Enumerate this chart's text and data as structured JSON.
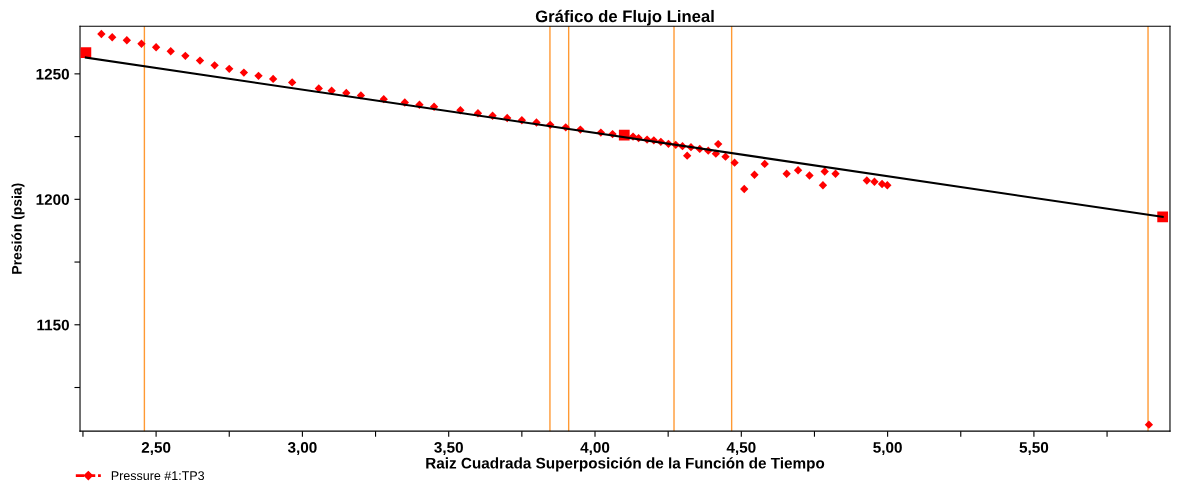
{
  "chart_data": {
    "type": "scatter",
    "title": "Gráfico de Flujo Lineal",
    "xlabel": "Raiz Cuadrada Superposición de la Función de Tiempo",
    "ylabel": "Presión (psia)",
    "xlim": [
      2.24,
      5.965
    ],
    "ylim": [
      1107.6,
      1269
    ],
    "xticks": [
      {
        "value": 2.25,
        "label": null
      },
      {
        "value": 2.5,
        "label": "2,50"
      },
      {
        "value": 2.75,
        "label": null
      },
      {
        "value": 3.0,
        "label": "3,00"
      },
      {
        "value": 3.25,
        "label": null
      },
      {
        "value": 3.5,
        "label": "3,50"
      },
      {
        "value": 3.75,
        "label": null
      },
      {
        "value": 4.0,
        "label": "4,00"
      },
      {
        "value": 4.25,
        "label": null
      },
      {
        "value": 4.5,
        "label": "4,50"
      },
      {
        "value": 4.75,
        "label": null
      },
      {
        "value": 5.0,
        "label": "5,00"
      },
      {
        "value": 5.25,
        "label": null
      },
      {
        "value": 5.5,
        "label": "5,50"
      },
      {
        "value": 5.75,
        "label": null
      }
    ],
    "yticks": [
      {
        "value": 1125,
        "label": null
      },
      1150,
      {
        "value": 1175,
        "label": null
      },
      1200,
      {
        "value": 1225,
        "label": null
      },
      1250
    ],
    "grid": false,
    "legend": "bottom left",
    "series": [
      {
        "name": "Pressure #1:TP3",
        "color": "#ff0000",
        "marker": "diamond",
        "x": [
          2.313,
          2.35,
          2.4,
          2.45,
          2.5,
          2.55,
          2.6,
          2.65,
          2.7,
          2.75,
          2.8,
          2.85,
          2.9,
          2.965,
          3.056,
          3.1,
          3.15,
          3.2,
          3.278,
          3.35,
          3.4,
          3.45,
          3.54,
          3.6,
          3.65,
          3.7,
          3.75,
          3.8,
          3.847,
          3.9,
          3.95,
          4.02,
          4.06,
          4.13,
          4.149,
          4.178,
          4.201,
          4.225,
          4.251,
          4.276,
          4.299,
          4.315,
          4.328,
          4.358,
          4.387,
          4.413,
          4.421,
          4.446,
          4.477,
          4.51,
          4.545,
          4.58,
          4.655,
          4.694,
          4.733,
          4.779,
          4.785,
          4.822,
          4.929,
          4.955,
          4.981,
          4.999,
          5.893
        ],
        "values": [
          1265.9,
          1264.6,
          1263.4,
          1262.0,
          1260.6,
          1259.0,
          1257.2,
          1255.3,
          1253.4,
          1252.0,
          1250.5,
          1249.2,
          1248.0,
          1246.6,
          1244.2,
          1243.3,
          1242.4,
          1241.4,
          1239.9,
          1238.6,
          1237.7,
          1236.9,
          1235.5,
          1234.3,
          1233.3,
          1232.4,
          1231.5,
          1230.6,
          1229.7,
          1228.7,
          1227.8,
          1226.6,
          1226.0,
          1225.0,
          1224.4,
          1223.8,
          1223.5,
          1222.9,
          1222.1,
          1221.7,
          1221.2,
          1217.4,
          1220.8,
          1220.1,
          1219.4,
          1218.2,
          1222.0,
          1217.0,
          1214.6,
          1204.1,
          1209.8,
          1214.1,
          1210.2,
          1211.6,
          1209.5,
          1205.6,
          1211.1,
          1210.2,
          1207.5,
          1207.0,
          1206.1,
          1205.6,
          1110.2
        ]
      },
      {
        "type": "line",
        "color": "#000000",
        "marker": "none",
        "x": [
          2.26,
          5.94
        ],
        "values": [
          1256.5,
          1193.0
        ]
      },
      {
        "type": "scatter",
        "color": "#ff0000",
        "marker": "square",
        "x": [
          2.26,
          4.1,
          5.94
        ],
        "values": [
          1258.5,
          1225.6,
          1193.0
        ]
      }
    ],
    "ref_lines": [
      {
        "axis": "x",
        "value": 2.46,
        "color": "#ff9933"
      },
      {
        "axis": "x",
        "value": 3.846,
        "color": "#ff9933"
      },
      {
        "axis": "x",
        "value": 3.91,
        "color": "#ff9933"
      },
      {
        "axis": "x",
        "value": 4.27,
        "color": "#ff9933"
      },
      {
        "axis": "x",
        "value": 4.467,
        "color": "#ff9933"
      },
      {
        "axis": "x",
        "value": 5.89,
        "color": "#ff9933"
      }
    ]
  }
}
